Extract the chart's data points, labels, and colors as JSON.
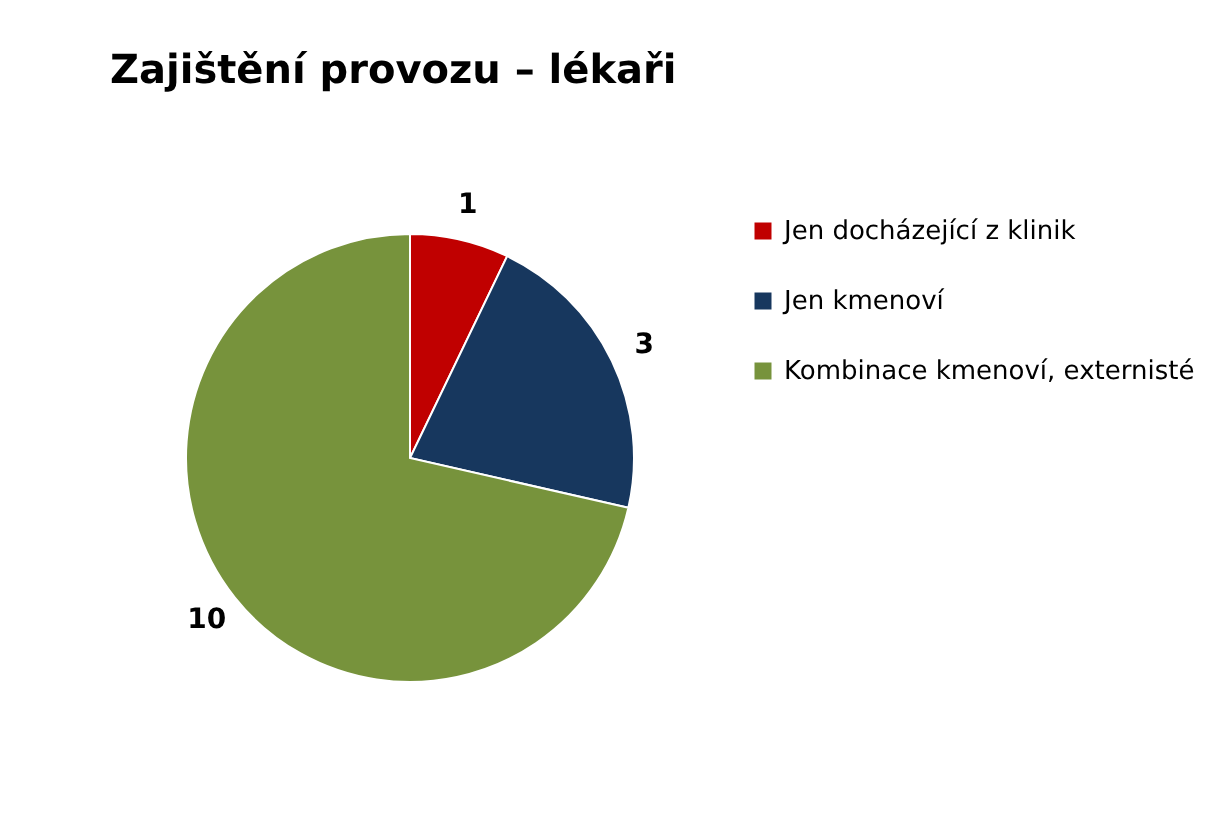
{
  "chart_data": {
    "type": "pie",
    "title": "Zajištění provozu – lékaři",
    "categories": [
      "Jen docházející z klinik",
      "Jen kmenoví",
      "Kombinace kmenoví, externisté"
    ],
    "values": [
      1,
      3,
      10
    ],
    "colors": [
      "#c00000",
      "#17375e",
      "#77933c"
    ],
    "data_labels": true,
    "legend": "right"
  }
}
